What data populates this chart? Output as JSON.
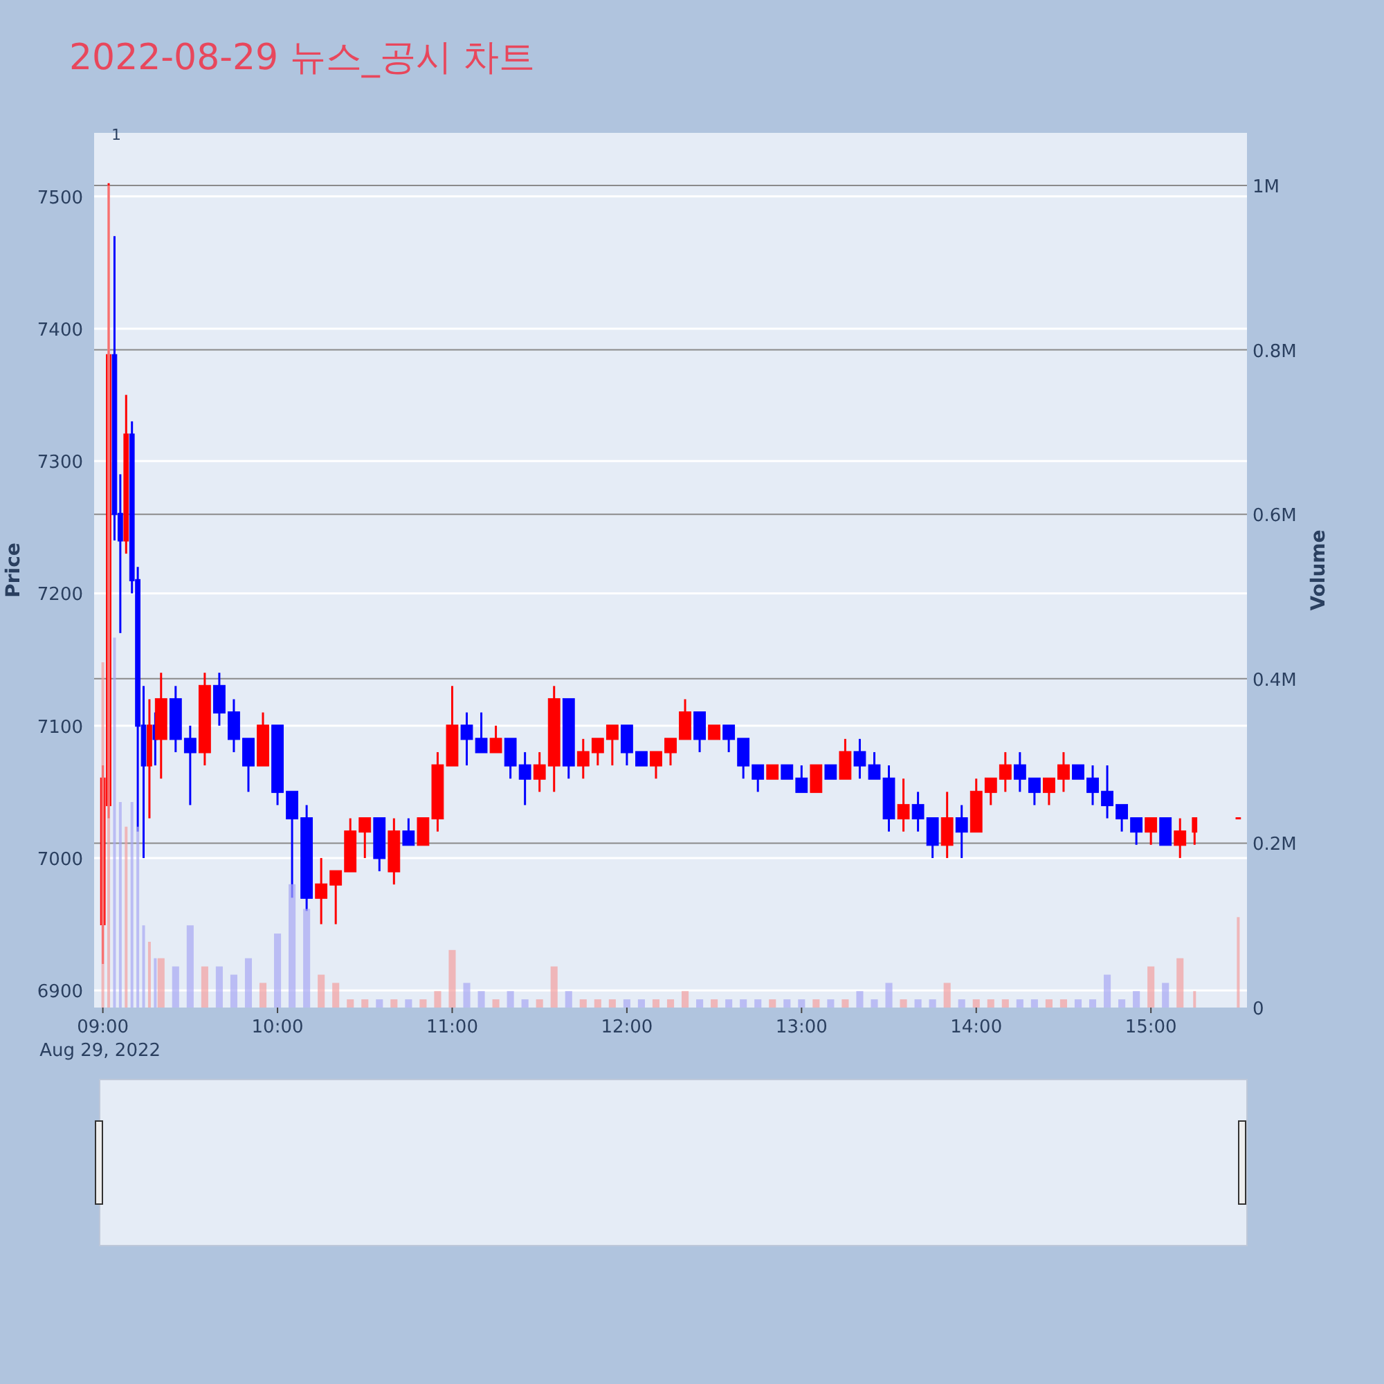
{
  "chart_data": {
    "type": "candlestick",
    "title": "2022-08-29 뉴스_공시 차트",
    "ylabel": "Price",
    "y2label": "Volume",
    "annotations": [
      "1",
      "Aug 29, 2022"
    ],
    "xlim": [
      "2022-08-29T08:57",
      "2022-08-29T15:33"
    ],
    "xticks": [
      {
        "value": "2022-08-29T09:00",
        "label": "09:00"
      },
      {
        "value": "2022-08-29T10:00",
        "label": "10:00"
      },
      {
        "value": "2022-08-29T11:00",
        "label": "11:00"
      },
      {
        "value": "2022-08-29T12:00",
        "label": "12:00"
      },
      {
        "value": "2022-08-29T13:00",
        "label": "13:00"
      },
      {
        "value": "2022-08-29T14:00",
        "label": "14:00"
      },
      {
        "value": "2022-08-29T15:00",
        "label": "15:00"
      }
    ],
    "ylim": [
      6887,
      7548
    ],
    "yticks": [
      6900,
      7000,
      7100,
      7200,
      7300,
      7400,
      7500
    ],
    "y2lim": [
      0,
      1064000
    ],
    "y2ticks": [
      {
        "value": 0,
        "label": "0"
      },
      {
        "value": 200000,
        "label": "0.2M"
      },
      {
        "value": 400000,
        "label": "0.4M"
      },
      {
        "value": 600000,
        "label": "0.6M"
      },
      {
        "value": 800000,
        "label": "0.8M"
      },
      {
        "value": 1000000,
        "label": "1M"
      }
    ],
    "grid": "y",
    "x": [
      "2022-08-29T09:00",
      "2022-08-29T09:02",
      "2022-08-29T09:04",
      "2022-08-29T09:06",
      "2022-08-29T09:08",
      "2022-08-29T09:10",
      "2022-08-29T09:12",
      "2022-08-29T09:14",
      "2022-08-29T09:16",
      "2022-08-29T09:18",
      "2022-08-29T09:20",
      "2022-08-29T09:25",
      "2022-08-29T09:30",
      "2022-08-29T09:35",
      "2022-08-29T09:40",
      "2022-08-29T09:45",
      "2022-08-29T09:50",
      "2022-08-29T09:55",
      "2022-08-29T10:00",
      "2022-08-29T10:05",
      "2022-08-29T10:10",
      "2022-08-29T10:15",
      "2022-08-29T10:20",
      "2022-08-29T10:25",
      "2022-08-29T10:30",
      "2022-08-29T10:35",
      "2022-08-29T10:40",
      "2022-08-29T10:45",
      "2022-08-29T10:50",
      "2022-08-29T10:55",
      "2022-08-29T11:00",
      "2022-08-29T11:05",
      "2022-08-29T11:10",
      "2022-08-29T11:15",
      "2022-08-29T11:20",
      "2022-08-29T11:25",
      "2022-08-29T11:30",
      "2022-08-29T11:35",
      "2022-08-29T11:40",
      "2022-08-29T11:45",
      "2022-08-29T11:50",
      "2022-08-29T11:55",
      "2022-08-29T12:00",
      "2022-08-29T12:05",
      "2022-08-29T12:10",
      "2022-08-29T12:15",
      "2022-08-29T12:20",
      "2022-08-29T12:25",
      "2022-08-29T12:30",
      "2022-08-29T12:35",
      "2022-08-29T12:40",
      "2022-08-29T12:45",
      "2022-08-29T12:50",
      "2022-08-29T12:55",
      "2022-08-29T13:00",
      "2022-08-29T13:05",
      "2022-08-29T13:10",
      "2022-08-29T13:15",
      "2022-08-29T13:20",
      "2022-08-29T13:25",
      "2022-08-29T13:30",
      "2022-08-29T13:35",
      "2022-08-29T13:40",
      "2022-08-29T13:45",
      "2022-08-29T13:50",
      "2022-08-29T13:55",
      "2022-08-29T14:00",
      "2022-08-29T14:05",
      "2022-08-29T14:10",
      "2022-08-29T14:15",
      "2022-08-29T14:20",
      "2022-08-29T14:25",
      "2022-08-29T14:30",
      "2022-08-29T14:35",
      "2022-08-29T14:40",
      "2022-08-29T14:45",
      "2022-08-29T14:50",
      "2022-08-29T14:55",
      "2022-08-29T15:00",
      "2022-08-29T15:05",
      "2022-08-29T15:10",
      "2022-08-29T15:15",
      "2022-08-29T15:30"
    ],
    "series": [
      {
        "ohlc": [
          [
            6950,
            7070,
            6920,
            7060
          ],
          [
            7040,
            7510,
            7030,
            7380
          ],
          [
            7380,
            7470,
            7240,
            7260
          ],
          [
            7260,
            7290,
            7170,
            7240
          ],
          [
            7240,
            7350,
            7230,
            7320
          ],
          [
            7320,
            7330,
            7200,
            7210
          ],
          [
            7210,
            7220,
            7020,
            7100
          ],
          [
            7100,
            7130,
            7000,
            7070
          ],
          [
            7070,
            7120,
            7030,
            7100
          ],
          [
            7100,
            7110,
            7070,
            7090
          ],
          [
            7090,
            7140,
            7060,
            7120
          ],
          [
            7120,
            7130,
            7080,
            7090
          ],
          [
            7090,
            7100,
            7040,
            7080
          ],
          [
            7080,
            7140,
            7070,
            7130
          ],
          [
            7130,
            7140,
            7100,
            7110
          ],
          [
            7110,
            7120,
            7080,
            7090
          ],
          [
            7090,
            7090,
            7050,
            7070
          ],
          [
            7070,
            7110,
            7070,
            7100
          ],
          [
            7100,
            7100,
            7040,
            7050
          ],
          [
            7050,
            7050,
            6970,
            7030
          ],
          [
            7030,
            7040,
            6960,
            6970
          ],
          [
            6970,
            7000,
            6950,
            6980
          ],
          [
            6980,
            6990,
            6950,
            6990
          ],
          [
            6990,
            7030,
            6990,
            7020
          ],
          [
            7020,
            7030,
            7000,
            7030
          ],
          [
            7030,
            7030,
            6990,
            7000
          ],
          [
            6990,
            7030,
            6980,
            7020
          ],
          [
            7020,
            7030,
            7010,
            7010
          ],
          [
            7010,
            7030,
            7010,
            7030
          ],
          [
            7030,
            7080,
            7020,
            7070
          ],
          [
            7070,
            7130,
            7070,
            7100
          ],
          [
            7100,
            7110,
            7070,
            7090
          ],
          [
            7090,
            7110,
            7080,
            7080
          ],
          [
            7080,
            7100,
            7080,
            7090
          ],
          [
            7090,
            7090,
            7060,
            7070
          ],
          [
            7070,
            7080,
            7040,
            7060
          ],
          [
            7060,
            7080,
            7050,
            7070
          ],
          [
            7070,
            7130,
            7050,
            7120
          ],
          [
            7120,
            7120,
            7060,
            7070
          ],
          [
            7070,
            7090,
            7060,
            7080
          ],
          [
            7080,
            7090,
            7070,
            7090
          ],
          [
            7090,
            7100,
            7070,
            7100
          ],
          [
            7100,
            7100,
            7070,
            7080
          ],
          [
            7080,
            7080,
            7070,
            7070
          ],
          [
            7070,
            7080,
            7060,
            7080
          ],
          [
            7080,
            7090,
            7070,
            7090
          ],
          [
            7090,
            7120,
            7090,
            7110
          ],
          [
            7110,
            7110,
            7080,
            7090
          ],
          [
            7090,
            7100,
            7090,
            7100
          ],
          [
            7100,
            7100,
            7080,
            7090
          ],
          [
            7090,
            7090,
            7060,
            7070
          ],
          [
            7070,
            7070,
            7050,
            7060
          ],
          [
            7060,
            7070,
            7060,
            7070
          ],
          [
            7070,
            7070,
            7060,
            7060
          ],
          [
            7060,
            7070,
            7050,
            7050
          ],
          [
            7050,
            7070,
            7050,
            7070
          ],
          [
            7070,
            7070,
            7060,
            7060
          ],
          [
            7060,
            7090,
            7060,
            7080
          ],
          [
            7080,
            7090,
            7060,
            7070
          ],
          [
            7070,
            7080,
            7060,
            7060
          ],
          [
            7060,
            7070,
            7020,
            7030
          ],
          [
            7030,
            7060,
            7020,
            7040
          ],
          [
            7040,
            7050,
            7020,
            7030
          ],
          [
            7030,
            7030,
            7000,
            7010
          ],
          [
            7010,
            7050,
            7000,
            7030
          ],
          [
            7030,
            7040,
            7000,
            7020
          ],
          [
            7020,
            7060,
            7020,
            7050
          ],
          [
            7050,
            7060,
            7040,
            7060
          ],
          [
            7060,
            7080,
            7050,
            7070
          ],
          [
            7070,
            7080,
            7050,
            7060
          ],
          [
            7060,
            7060,
            7040,
            7050
          ],
          [
            7050,
            7060,
            7040,
            7060
          ],
          [
            7060,
            7080,
            7050,
            7070
          ],
          [
            7070,
            7070,
            7060,
            7060
          ],
          [
            7060,
            7070,
            7040,
            7050
          ],
          [
            7050,
            7070,
            7030,
            7040
          ],
          [
            7040,
            7040,
            7020,
            7030
          ],
          [
            7030,
            7030,
            7010,
            7020
          ],
          [
            7020,
            7030,
            7010,
            7030
          ],
          [
            7030,
            7030,
            7010,
            7010
          ],
          [
            7010,
            7030,
            7000,
            7020
          ],
          [
            7020,
            7030,
            7010,
            7030
          ],
          [
            7030,
            7030,
            7030,
            7030
          ]
        ],
        "colors": [
          "#ff0000",
          "#ff0000",
          "#0000ff",
          "#0000ff",
          "#ff0000",
          "#0000ff",
          "#0000ff",
          "#0000ff",
          "#ff0000",
          "#0000ff",
          "#ff0000",
          "#0000ff",
          "#0000ff",
          "#ff0000",
          "#0000ff",
          "#0000ff",
          "#0000ff",
          "#ff0000",
          "#0000ff",
          "#0000ff",
          "#0000ff",
          "#ff0000",
          "#ff0000",
          "#ff0000",
          "#ff0000",
          "#0000ff",
          "#ff0000",
          "#0000ff",
          "#ff0000",
          "#ff0000",
          "#ff0000",
          "#0000ff",
          "#0000ff",
          "#ff0000",
          "#0000ff",
          "#0000ff",
          "#ff0000",
          "#ff0000",
          "#0000ff",
          "#ff0000",
          "#ff0000",
          "#ff0000",
          "#0000ff",
          "#0000ff",
          "#ff0000",
          "#ff0000",
          "#ff0000",
          "#0000ff",
          "#ff0000",
          "#0000ff",
          "#0000ff",
          "#0000ff",
          "#ff0000",
          "#0000ff",
          "#0000ff",
          "#ff0000",
          "#0000ff",
          "#ff0000",
          "#0000ff",
          "#0000ff",
          "#0000ff",
          "#ff0000",
          "#0000ff",
          "#0000ff",
          "#ff0000",
          "#0000ff",
          "#ff0000",
          "#ff0000",
          "#ff0000",
          "#0000ff",
          "#0000ff",
          "#ff0000",
          "#ff0000",
          "#0000ff",
          "#0000ff",
          "#0000ff",
          "#0000ff",
          "#0000ff",
          "#ff0000",
          "#0000ff",
          "#ff0000",
          "#ff0000",
          "#ff0000"
        ]
      },
      {
        "type": "bar",
        "axis": "y2",
        "values": [
          420000,
          1000000,
          450000,
          250000,
          220000,
          250000,
          220000,
          100000,
          80000,
          60000,
          60000,
          50000,
          100000,
          50000,
          50000,
          40000,
          60000,
          30000,
          90000,
          150000,
          120000,
          40000,
          30000,
          10000,
          10000,
          10000,
          10000,
          10000,
          10000,
          20000,
          70000,
          30000,
          20000,
          10000,
          20000,
          10000,
          10000,
          50000,
          20000,
          10000,
          10000,
          10000,
          10000,
          10000,
          10000,
          10000,
          20000,
          10000,
          10000,
          10000,
          10000,
          10000,
          10000,
          10000,
          10000,
          10000,
          10000,
          10000,
          20000,
          10000,
          30000,
          10000,
          10000,
          10000,
          30000,
          10000,
          10000,
          10000,
          10000,
          10000,
          10000,
          10000,
          10000,
          10000,
          10000,
          40000,
          10000,
          20000,
          50000,
          30000,
          60000,
          20000,
          110000
        ],
        "colors": [
          "#f4a0a0",
          "#f4a0a0",
          "#a8a8f4",
          "#a8a8f4",
          "#f4a0a0",
          "#a8a8f4",
          "#a8a8f4",
          "#a8a8f4",
          "#f4a0a0",
          "#a8a8f4",
          "#f4a0a0",
          "#a8a8f4",
          "#a8a8f4",
          "#f4a0a0",
          "#a8a8f4",
          "#a8a8f4",
          "#a8a8f4",
          "#f4a0a0",
          "#a8a8f4",
          "#a8a8f4",
          "#a8a8f4",
          "#f4a0a0",
          "#f4a0a0",
          "#f4a0a0",
          "#f4a0a0",
          "#a8a8f4",
          "#f4a0a0",
          "#a8a8f4",
          "#f4a0a0",
          "#f4a0a0",
          "#f4a0a0",
          "#a8a8f4",
          "#a8a8f4",
          "#f4a0a0",
          "#a8a8f4",
          "#a8a8f4",
          "#f4a0a0",
          "#f4a0a0",
          "#a8a8f4",
          "#f4a0a0",
          "#f4a0a0",
          "#f4a0a0",
          "#a8a8f4",
          "#a8a8f4",
          "#f4a0a0",
          "#f4a0a0",
          "#f4a0a0",
          "#a8a8f4",
          "#f4a0a0",
          "#a8a8f4",
          "#a8a8f4",
          "#a8a8f4",
          "#f4a0a0",
          "#a8a8f4",
          "#a8a8f4",
          "#f4a0a0",
          "#a8a8f4",
          "#f4a0a0",
          "#a8a8f4",
          "#a8a8f4",
          "#a8a8f4",
          "#f4a0a0",
          "#a8a8f4",
          "#a8a8f4",
          "#f4a0a0",
          "#a8a8f4",
          "#f4a0a0",
          "#f4a0a0",
          "#f4a0a0",
          "#a8a8f4",
          "#a8a8f4",
          "#f4a0a0",
          "#f4a0a0",
          "#a8a8f4",
          "#a8a8f4",
          "#a8a8f4",
          "#a8a8f4",
          "#a8a8f4",
          "#f4a0a0",
          "#a8a8f4",
          "#f4a0a0",
          "#f4a0a0",
          "#f4a0a0"
        ]
      }
    ]
  }
}
